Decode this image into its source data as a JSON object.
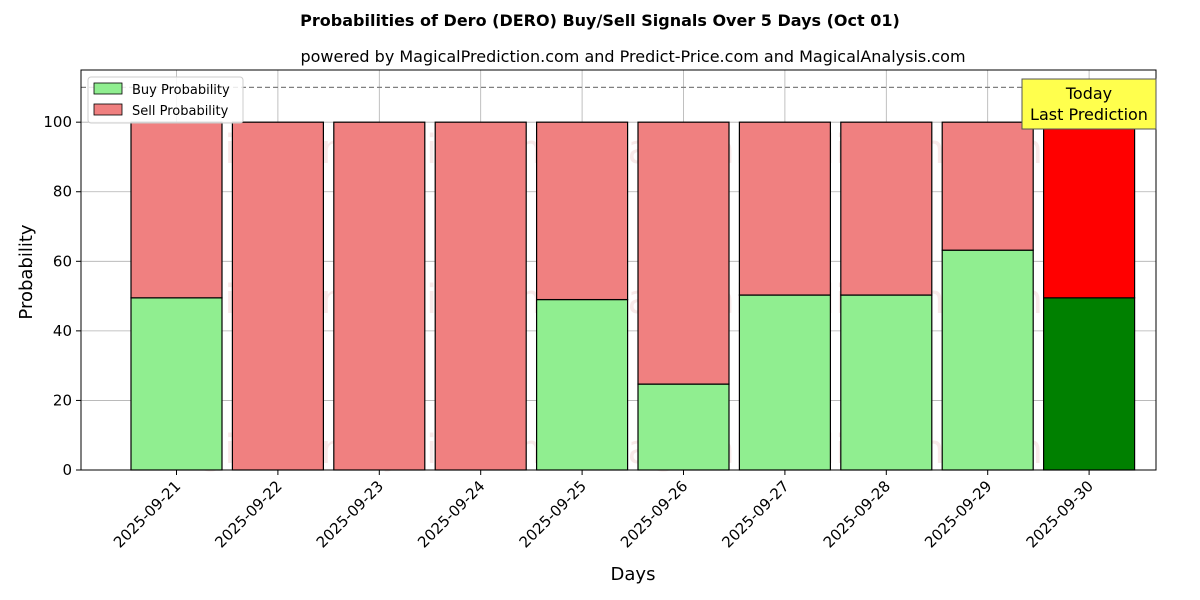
{
  "chart_data": {
    "type": "bar",
    "title": "Probabilities of Dero (DERO) Buy/Sell Signals Over 5 Days (Oct 01)",
    "subtitle": "powered by MagicalPrediction.com and Predict-Price.com and MagicalAnalysis.com",
    "xlabel": "Days",
    "ylabel": "Probability",
    "ylim": [
      0,
      115
    ],
    "yticks": [
      0,
      20,
      40,
      60,
      80,
      100
    ],
    "categories": [
      "2025-09-21",
      "2025-09-22",
      "2025-09-23",
      "2025-09-24",
      "2025-09-25",
      "2025-09-26",
      "2025-09-27",
      "2025-09-28",
      "2025-09-29",
      "2025-09-30"
    ],
    "stacked": true,
    "series": [
      {
        "name": "Buy Probability",
        "values": [
          49.5,
          0,
          0,
          0,
          49,
          24.7,
          50.3,
          50.3,
          63.2,
          49.5
        ],
        "color": "#90ee90",
        "highlight_color": "#008000"
      },
      {
        "name": "Sell Probability",
        "values": [
          50.5,
          100,
          100,
          100,
          51,
          75.3,
          49.7,
          49.7,
          36.8,
          50.5
        ],
        "color": "#f08080",
        "highlight_color": "#ff0000"
      }
    ],
    "highlight_index": 9,
    "reference_line": {
      "y": 110,
      "style": "dashed",
      "color": "#808080"
    },
    "grid": true,
    "legend_position": "top-left",
    "annotation": {
      "lines": [
        "Today",
        "Last Prediction"
      ],
      "color": "#ffff4d"
    },
    "watermarks": [
      "MagicalAnalysis.com",
      "MagicalPrediction.com"
    ]
  }
}
